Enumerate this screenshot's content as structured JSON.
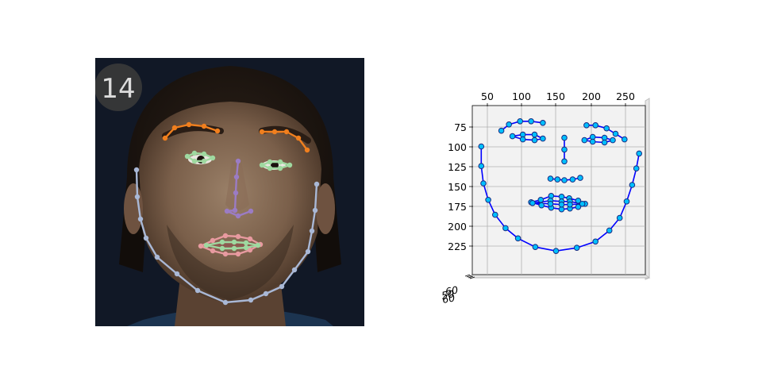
{
  "frame_badge": "14",
  "landmark_colors": {
    "jaw": "#a9b8d6",
    "brows": "#f07f1e",
    "eyes": "#9fd9a0",
    "nose": "#9b7cc4",
    "lips": "#e89aa0"
  },
  "plot": {
    "line_color": "#0000ff",
    "marker_color": "#00bfff",
    "panel_color": "#f2f2f2",
    "grid": true,
    "x_ticks": [
      "50",
      "100",
      "150",
      "200",
      "250"
    ],
    "y_ticks": [
      "75",
      "100",
      "125",
      "150",
      "175",
      "200",
      "225"
    ],
    "z_ticks": [
      "60",
      "50",
      "60"
    ]
  }
}
